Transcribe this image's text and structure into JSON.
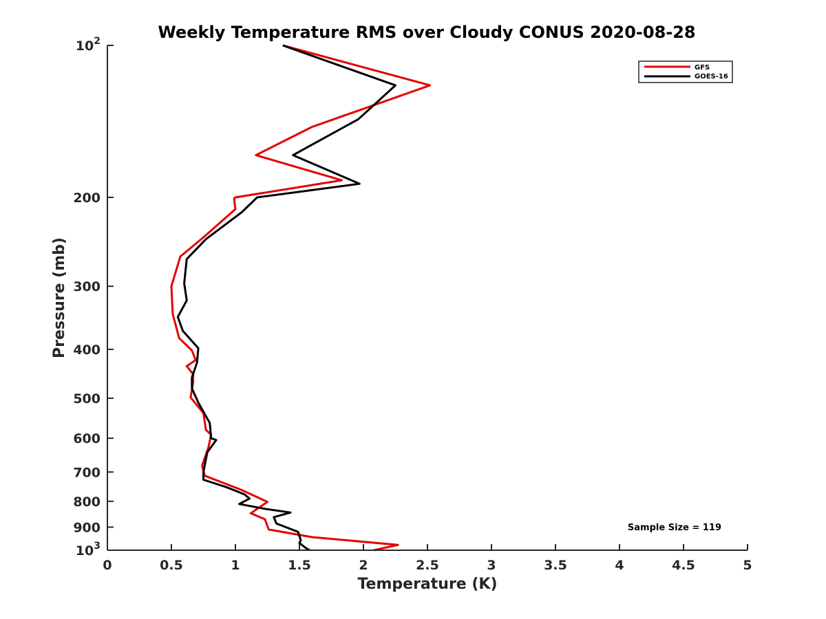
{
  "chart_data": {
    "type": "line",
    "title": "Weekly Temperature RMS over Cloudy CONUS 2020-08-28",
    "xlabel": "Temperature (K)",
    "ylabel": "Pressure (mb)",
    "xlim": [
      0,
      5
    ],
    "ylim": [
      100,
      1000
    ],
    "y_scale": "log",
    "y_direction": "reversed",
    "grid": false,
    "legend_position": "top-right",
    "x_ticks": [
      0,
      0.5,
      1,
      1.5,
      2,
      2.5,
      3,
      3.5,
      4,
      4.5,
      5
    ],
    "x_tick_labels": [
      "0",
      "0.5",
      "1",
      "1.5",
      "2",
      "2.5",
      "3",
      "3.5",
      "4",
      "4.5",
      "5"
    ],
    "y_ticks": [
      {
        "value": 100,
        "base": "10",
        "exp": "2"
      },
      {
        "value": 200,
        "label": "200"
      },
      {
        "value": 300,
        "label": "300"
      },
      {
        "value": 400,
        "label": "400"
      },
      {
        "value": 500,
        "label": "500"
      },
      {
        "value": 600,
        "label": "600"
      },
      {
        "value": 700,
        "label": "700"
      },
      {
        "value": 800,
        "label": "800"
      },
      {
        "value": 900,
        "label": "900"
      },
      {
        "value": 1000,
        "base": "10",
        "exp": "3"
      }
    ],
    "series": [
      {
        "name": "GFS",
        "color": "#e30000",
        "points": [
          [
            1.37,
            100
          ],
          [
            2.52,
            120
          ],
          [
            1.6,
            145
          ],
          [
            1.16,
            165
          ],
          [
            1.83,
            185
          ],
          [
            1.0,
            200
          ],
          [
            0.99,
            201
          ],
          [
            1.0,
            211
          ],
          [
            0.75,
            240
          ],
          [
            0.57,
            262
          ],
          [
            0.5,
            300
          ],
          [
            0.51,
            340
          ],
          [
            0.56,
            380
          ],
          [
            0.66,
            402
          ],
          [
            0.69,
            420
          ],
          [
            0.62,
            432
          ],
          [
            0.67,
            448
          ],
          [
            0.67,
            465
          ],
          [
            0.65,
            498
          ],
          [
            0.75,
            535
          ],
          [
            0.77,
            578
          ],
          [
            0.81,
            590
          ],
          [
            0.79,
            625
          ],
          [
            0.74,
            680
          ],
          [
            0.76,
            712
          ],
          [
            1.05,
            760
          ],
          [
            1.25,
            802
          ],
          [
            1.12,
            845
          ],
          [
            1.23,
            868
          ],
          [
            1.26,
            910
          ],
          [
            1.6,
            942
          ],
          [
            2.27,
            976
          ],
          [
            2.08,
            1000
          ]
        ]
      },
      {
        "name": "GOES-16",
        "color": "#000000",
        "points": [
          [
            1.37,
            100
          ],
          [
            2.25,
            120
          ],
          [
            1.96,
            140
          ],
          [
            1.45,
            165
          ],
          [
            1.97,
            188
          ],
          [
            1.17,
            200
          ],
          [
            1.05,
            214
          ],
          [
            0.77,
            242
          ],
          [
            0.62,
            265
          ],
          [
            0.6,
            296
          ],
          [
            0.62,
            320
          ],
          [
            0.55,
            345
          ],
          [
            0.59,
            368
          ],
          [
            0.71,
            398
          ],
          [
            0.7,
            425
          ],
          [
            0.66,
            455
          ],
          [
            0.66,
            478
          ],
          [
            0.71,
            510
          ],
          [
            0.8,
            560
          ],
          [
            0.81,
            600
          ],
          [
            0.85,
            605
          ],
          [
            0.78,
            640
          ],
          [
            0.75,
            700
          ],
          [
            0.75,
            725
          ],
          [
            0.93,
            750
          ],
          [
            1.07,
            775
          ],
          [
            1.11,
            790
          ],
          [
            1.03,
            810
          ],
          [
            1.23,
            828
          ],
          [
            1.43,
            842
          ],
          [
            1.3,
            860
          ],
          [
            1.32,
            885
          ],
          [
            1.49,
            920
          ],
          [
            1.51,
            955
          ],
          [
            1.5,
            968
          ],
          [
            1.55,
            990
          ],
          [
            1.58,
            1000
          ]
        ]
      }
    ],
    "legend": [
      {
        "label": "GFS",
        "color": "#e30000"
      },
      {
        "label": "GOES-16",
        "color": "#000000"
      }
    ],
    "annotation": "Sample Size = 119"
  }
}
